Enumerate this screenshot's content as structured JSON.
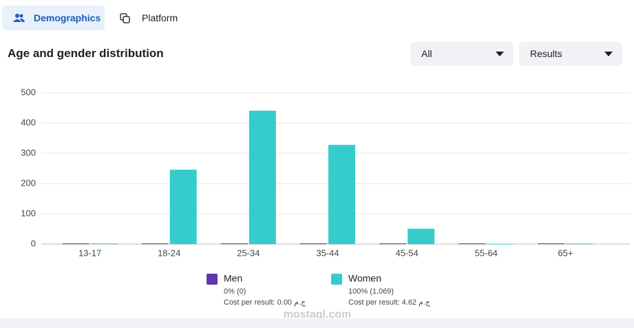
{
  "tabs": [
    "Demographics",
    "Platform"
  ],
  "filters": [
    "All",
    "Results"
  ],
  "watermark": "mostaql.com",
  "chart_data": {
    "type": "bar",
    "title": "Age and gender distribution",
    "categories": [
      "13-17",
      "18-24",
      "25-34",
      "35-44",
      "45-54",
      "55-64",
      "65+"
    ],
    "series": [
      {
        "name": "Men",
        "color": "#5e35b1",
        "values": [
          0,
          0,
          0,
          0,
          0,
          0,
          0
        ],
        "summary": "0% (0)",
        "cost": "Cost per result: 0.00 ج.م"
      },
      {
        "name": "Women",
        "color": "#36cccc",
        "values": [
          0,
          246,
          441,
          328,
          51,
          1,
          2
        ],
        "summary": "100% (1,069)",
        "cost": "Cost per result: 4.62 ج.م"
      }
    ],
    "ylim": [
      0,
      500
    ],
    "yticks": [
      0,
      100,
      200,
      300,
      400,
      500
    ],
    "grid": true
  }
}
